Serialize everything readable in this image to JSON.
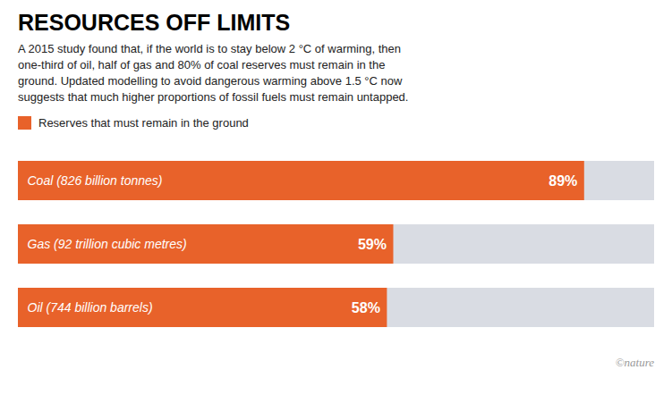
{
  "chart_data": {
    "type": "bar",
    "orientation": "horizontal",
    "title": "RESOURCES OFF LIMITS",
    "subtitle": "A 2015 study found that, if the world is to stay below 2 °C of warming, then\none-third of oil, half of gas and 80% of coal reserves must remain in the\nground. Updated modelling to avoid dangerous warming above 1.5 °C now\nsuggests that much higher proportions of fossil fuels must remain untapped.",
    "categories": [
      "Coal (826 billion tonnes)",
      "Gas (92 trillion cubic metres)",
      "Oil (744 billion barrels)"
    ],
    "series": [
      {
        "name": "Reserves that must remain in the ground",
        "color": "#E8622A",
        "values": [
          89,
          59,
          58
        ],
        "value_labels": [
          "89%",
          "59%",
          "58%"
        ]
      }
    ],
    "xlim": [
      0,
      100
    ],
    "data_labels": true,
    "tick_labels": false,
    "grid": false,
    "annotations": [
      {
        "text": "©nature"
      }
    ]
  }
}
